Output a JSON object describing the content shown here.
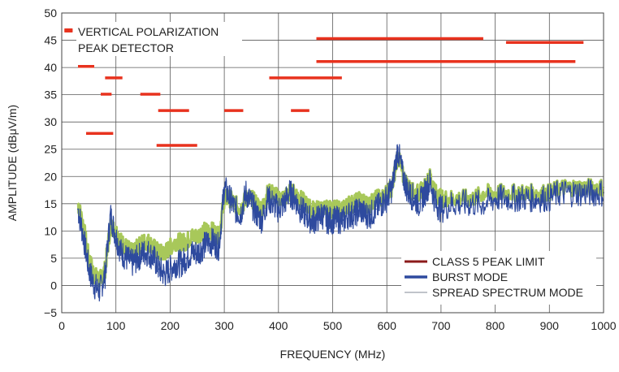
{
  "chart_data": {
    "type": "line",
    "title": "",
    "xlabel": "FREQUENCY (MHz)",
    "ylabel": "AMPLITUDE (dBμV/m)",
    "xlim": [
      0,
      1000
    ],
    "ylim": [
      -5,
      50
    ],
    "x_ticks": [
      0,
      100,
      200,
      300,
      400,
      500,
      600,
      700,
      800,
      900,
      1000
    ],
    "y_ticks": [
      -5,
      0,
      5,
      10,
      15,
      20,
      25,
      30,
      35,
      40,
      45,
      50
    ],
    "y_tick_labels": [
      "−5",
      "0",
      "5",
      "10",
      "15",
      "20",
      "25",
      "30",
      "35",
      "40",
      "45",
      "50"
    ],
    "grid": true,
    "annotation": [
      "VERTICAL POLARIZATION",
      "PEAK DETECTOR"
    ],
    "legend_position": "bottom-right",
    "colors": {
      "limit": "#e8321e",
      "limit_legend": "#8b1a1a",
      "burst": "#2e4a9e",
      "spread": "#a8c85a",
      "spread_legend": "#9aa0aa"
    },
    "series": [
      {
        "name": "CLASS 5 PEAK LIMIT",
        "style": "segments",
        "segments": [
          {
            "x": [
              5,
              20
            ],
            "y": 46.8
          },
          {
            "x": [
              30,
              60
            ],
            "y": 40.2
          },
          {
            "x": [
              80,
              112
            ],
            "y": 38.1
          },
          {
            "x": [
              72,
              92
            ],
            "y": 35.1
          },
          {
            "x": [
              145,
              182
            ],
            "y": 35.1
          },
          {
            "x": [
              178,
              235
            ],
            "y": 32.1
          },
          {
            "x": [
              300,
              335
            ],
            "y": 32.1
          },
          {
            "x": [
              45,
              95
            ],
            "y": 27.9
          },
          {
            "x": [
              175,
              250
            ],
            "y": 25.7
          },
          {
            "x": [
              383,
              517
            ],
            "y": 38.1
          },
          {
            "x": [
              423,
              457
            ],
            "y": 32.1
          },
          {
            "x": [
              470,
              778
            ],
            "y": 45.3
          },
          {
            "x": [
              820,
              963
            ],
            "y": 44.6
          },
          {
            "x": [
              470,
              948
            ],
            "y": 41.1
          }
        ]
      },
      {
        "name": "BURST MODE",
        "x": [
          30,
          40,
          50,
          60,
          70,
          80,
          90,
          100,
          110,
          120,
          130,
          140,
          150,
          160,
          170,
          180,
          190,
          200,
          210,
          220,
          230,
          240,
          250,
          260,
          270,
          280,
          290,
          300,
          310,
          320,
          330,
          340,
          350,
          360,
          370,
          380,
          390,
          400,
          410,
          420,
          430,
          440,
          450,
          460,
          470,
          480,
          490,
          500,
          510,
          520,
          530,
          540,
          550,
          560,
          570,
          580,
          590,
          600,
          610,
          620,
          630,
          640,
          650,
          660,
          670,
          680,
          690,
          700,
          720,
          740,
          760,
          780,
          800,
          820,
          840,
          860,
          880,
          900,
          920,
          940,
          960,
          980,
          1000
        ],
        "y": [
          14,
          9,
          3,
          0,
          -1,
          2,
          13,
          9,
          6,
          5,
          4,
          5,
          6,
          6,
          5,
          3,
          2,
          3,
          4,
          4,
          5,
          6,
          6,
          7,
          8,
          8,
          7,
          18,
          16,
          14,
          13,
          17,
          15,
          13,
          12,
          16,
          15,
          14,
          15,
          17,
          16,
          14,
          13,
          12,
          12,
          13,
          12,
          12,
          12,
          12,
          13,
          13,
          14,
          13,
          13,
          14,
          15,
          16,
          18,
          25,
          20,
          17,
          16,
          15,
          17,
          19,
          15,
          14,
          15,
          15,
          15,
          15,
          16,
          16,
          16,
          16,
          16,
          16,
          17,
          17,
          17,
          17,
          17
        ]
      },
      {
        "name": "SPREAD SPECTRUM MODE",
        "x": [
          30,
          40,
          50,
          60,
          70,
          80,
          90,
          100,
          110,
          120,
          130,
          140,
          150,
          160,
          170,
          180,
          190,
          200,
          210,
          220,
          230,
          240,
          250,
          260,
          270,
          280,
          290,
          300,
          310,
          320,
          330,
          340,
          350,
          360,
          370,
          380,
          390,
          400,
          410,
          420,
          430,
          440,
          450,
          460,
          470,
          480,
          490,
          500,
          510,
          520,
          530,
          540,
          550,
          560,
          570,
          580,
          590,
          600,
          610,
          620,
          630,
          640,
          650,
          660,
          670,
          680,
          690,
          700,
          720,
          740,
          760,
          780,
          800,
          820,
          840,
          860,
          880,
          900,
          920,
          940,
          960,
          980,
          1000
        ],
        "y": [
          15,
          11,
          5,
          2,
          1,
          3,
          11,
          10,
          8,
          7,
          6,
          7,
          8,
          8,
          7,
          6,
          6,
          7,
          8,
          8,
          8,
          9,
          9,
          10,
          10,
          10,
          9,
          16,
          16,
          15,
          14,
          16,
          16,
          15,
          14,
          17,
          17,
          16,
          16,
          17,
          17,
          16,
          15,
          14,
          14,
          14,
          14,
          14,
          14,
          14,
          15,
          15,
          16,
          15,
          15,
          16,
          16,
          17,
          18,
          24,
          20,
          18,
          17,
          17,
          18,
          20,
          17,
          16,
          16,
          16,
          16,
          17,
          17,
          17,
          17,
          17,
          17,
          17,
          18,
          18,
          18,
          18,
          18
        ]
      }
    ]
  }
}
